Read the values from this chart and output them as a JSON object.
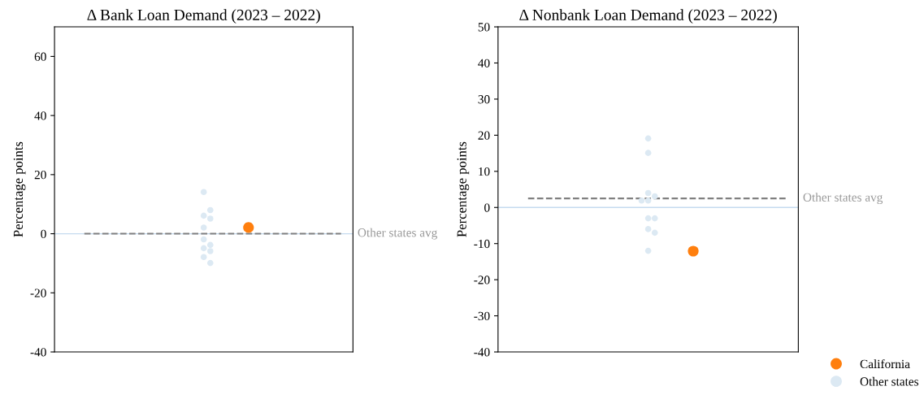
{
  "chart_data": [
    {
      "type": "scatter",
      "title": "Δ Bank Loan Demand (2023 – 2022)",
      "ylabel": "Percentage points",
      "categories": [
        null
      ],
      "ylim": [
        -40,
        70
      ],
      "yticks": [
        -40,
        -20,
        0,
        20,
        40,
        60
      ],
      "grid": false,
      "legend": false,
      "marker": "circle",
      "series": [
        {
          "color": "#ff7f0e",
          "x": [
            null
          ],
          "values": [
            2.1
          ]
        },
        {
          "color": "#dce9f3",
          "x": [
            null,
            null,
            null,
            null,
            null,
            null,
            null,
            null,
            null,
            null,
            null
          ],
          "values": [
            14.1,
            6.1,
            8.0,
            5.1,
            2.1,
            -1.9,
            -4.9,
            -3.8,
            -5.9,
            -7.9,
            -9.9
          ]
        }
      ],
      "ref_lines": [
        {
          "axis": "y",
          "value": 0,
          "color": "#c6dbef",
          "line_style": "solid"
        },
        {
          "axis": "y",
          "value": 0,
          "label": "Other states avg",
          "color": "#808080",
          "line_style": "dashed"
        }
      ]
    },
    {
      "type": "scatter",
      "title": "Δ Nonbank Loan Demand (2023 – 2022)",
      "ylabel": "Percentage points",
      "categories": [
        null
      ],
      "ylim": [
        -40,
        50
      ],
      "yticks": [
        -40,
        -30,
        -20,
        -10,
        0,
        10,
        20,
        30,
        40,
        50
      ],
      "grid": false,
      "legend": "bottom right",
      "marker": "circle",
      "series": [
        {
          "name": "California",
          "color": "#ff7f0e",
          "x": [
            null
          ],
          "values": [
            -12.1
          ]
        },
        {
          "name": "Other states",
          "color": "#dce9f3",
          "x": [
            null,
            null,
            null,
            null,
            null,
            null,
            null,
            null,
            null,
            null,
            null
          ],
          "values": [
            19.1,
            15.1,
            4.0,
            3.1,
            1.9,
            1.9,
            -3.0,
            -3.0,
            -6.0,
            -7.0,
            -12.0
          ]
        }
      ],
      "ref_lines": [
        {
          "axis": "y",
          "value": 0,
          "color": "#c6dbef",
          "line_style": "solid"
        },
        {
          "axis": "y",
          "value": 2.5,
          "label": "Other states avg",
          "color": "#808080",
          "line_style": "dashed"
        }
      ]
    }
  ]
}
